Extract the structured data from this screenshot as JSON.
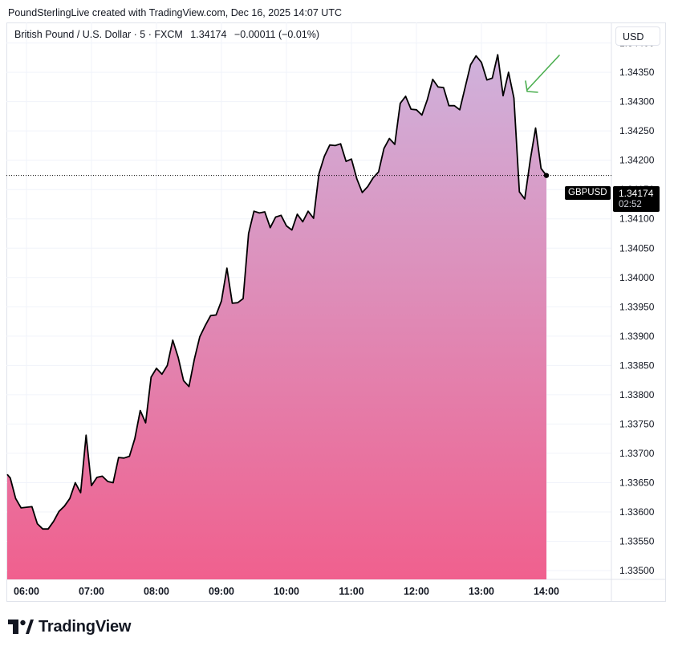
{
  "attribution": "PoundSterlingLive created with TradingView.com, Dec 16, 2025 14:07 UTC",
  "legend": {
    "instrument": "British Pound / U.S. Dollar · 5 · FXCM",
    "last": "1.34174",
    "change": "−0.00011 (−0.01%)"
  },
  "currency_button": "USD",
  "symbol_tag": "GBPUSD",
  "price_tag": {
    "price": "1.34174",
    "countdown": "02:52"
  },
  "brand": "TradingView",
  "colors": {
    "line": "#000000",
    "area_top": "#cfb2dc",
    "area_bottom": "#f0608e",
    "annotation_arrow": "#4caf50"
  },
  "chart_data": {
    "type": "area",
    "title": "",
    "xlabel": "",
    "ylabel": "",
    "x_ticks": [
      "06:00",
      "07:00",
      "08:00",
      "09:00",
      "10:00",
      "11:00",
      "12:00",
      "13:00",
      "14:00"
    ],
    "y_ticks": [
      "1.33500",
      "1.33550",
      "1.33600",
      "1.33650",
      "1.33700",
      "1.33750",
      "1.33800",
      "1.33850",
      "1.33900",
      "1.33950",
      "1.34000",
      "1.34050",
      "1.34100",
      "1.34150",
      "1.34200",
      "1.34250",
      "1.34300",
      "1.34350",
      "1.34400"
    ],
    "ylim": [
      1.33485,
      1.34435
    ],
    "grid": true,
    "interval_minutes": 5,
    "start_time": "05:40",
    "series": [
      {
        "values": [
          1.33664,
          1.33658,
          1.33623,
          1.33607,
          1.33608,
          1.33609,
          1.3358,
          1.33571,
          1.33571,
          1.33584,
          1.33601,
          1.3361,
          1.33623,
          1.3365,
          1.33633,
          1.33731,
          1.33645,
          1.33659,
          1.33661,
          1.33652,
          1.3365,
          1.33693,
          1.33692,
          1.33695,
          1.33725,
          1.33773,
          1.33752,
          1.3383,
          1.33845,
          1.33835,
          1.3385,
          1.33893,
          1.33864,
          1.33824,
          1.33814,
          1.33861,
          1.33899,
          1.33918,
          1.33935,
          1.33936,
          1.3396,
          1.34016,
          1.33956,
          1.33957,
          1.33964,
          1.34075,
          1.34113,
          1.3411,
          1.34112,
          1.34085,
          1.34103,
          1.34106,
          1.34088,
          1.34081,
          1.34108,
          1.34095,
          1.34113,
          1.34101,
          1.34177,
          1.34207,
          1.34226,
          1.34225,
          1.34228,
          1.34198,
          1.34202,
          1.34168,
          1.34145,
          1.34155,
          1.3417,
          1.3418,
          1.3422,
          1.34237,
          1.34227,
          1.34297,
          1.34309,
          1.34287,
          1.34286,
          1.34277,
          1.34303,
          1.34338,
          1.34325,
          1.34324,
          1.34293,
          1.34293,
          1.34286,
          1.34325,
          1.34363,
          1.34378,
          1.34367,
          1.34337,
          1.3434,
          1.3438,
          1.3431,
          1.3435,
          1.34306,
          1.34146,
          1.34134,
          1.342,
          1.34255,
          1.34186,
          1.34174
        ]
      }
    ]
  }
}
